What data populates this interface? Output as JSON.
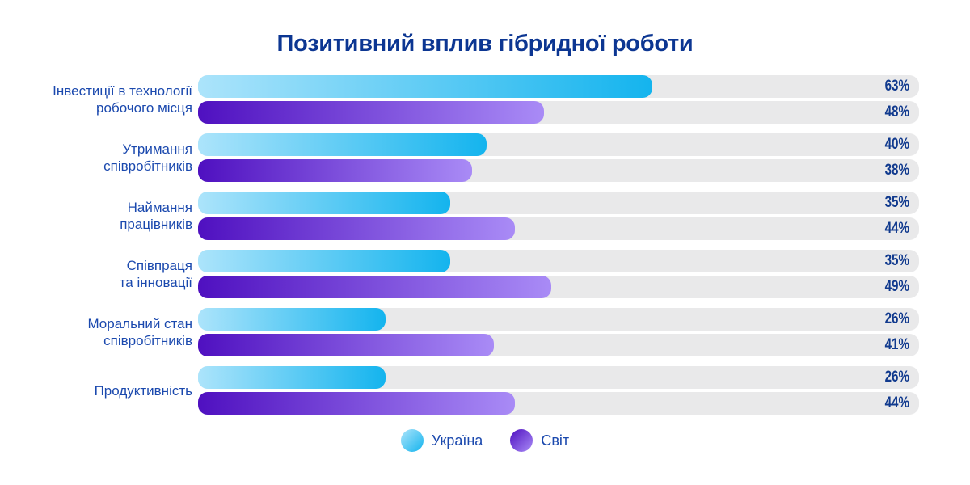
{
  "chart_data": {
    "type": "bar",
    "orientation": "horizontal",
    "title": "Позитивний вплив гібридної роботи",
    "categories": [
      [
        "Інвестиції в технології",
        "робочого місця"
      ],
      [
        "Утримання",
        "співробітників"
      ],
      [
        "Наймання",
        "працівників"
      ],
      [
        "Співпраця",
        "та інновації"
      ],
      [
        "Моральний стан",
        "співробітників"
      ],
      [
        "Продуктивність"
      ]
    ],
    "series": [
      {
        "name": "Україна",
        "values": [
          63,
          40,
          35,
          35,
          26,
          26
        ]
      },
      {
        "name": "Світ",
        "values": [
          48,
          38,
          44,
          49,
          41,
          44
        ]
      }
    ],
    "value_suffix": "%",
    "xlim": [
      0,
      100
    ],
    "grid": false,
    "legend_position": "bottom"
  },
  "legend": {
    "items": [
      {
        "label": "Україна",
        "swatch": "ukraine"
      },
      {
        "label": "Світ",
        "swatch": "world"
      }
    ]
  },
  "colors": {
    "title_text": "#0c3692",
    "label_text": "#1b49ae",
    "value_text": "#113a8e",
    "track": "#e9e9ea",
    "ukraine_gradient_start": "#ace4fb",
    "ukraine_gradient_end": "#14b4ee",
    "world_gradient_start": "#4f10c0",
    "world_gradient_end": "#a98bf6",
    "background": "#ffffff"
  },
  "icons": {
    "ukraine_swatch": "circle-gradient-cyan",
    "world_swatch": "circle-gradient-purple"
  }
}
